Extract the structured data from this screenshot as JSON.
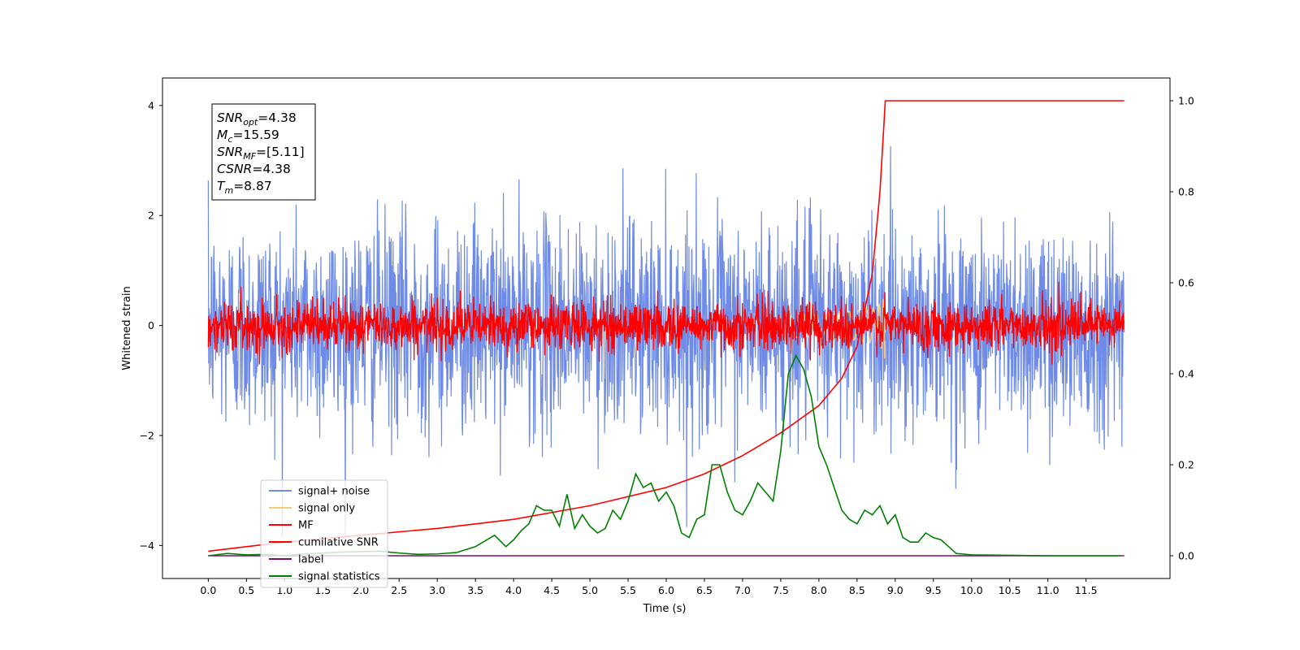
{
  "chart_data": {
    "type": "line",
    "xlabel": "Time (s)",
    "ylabel": "Whitened strain",
    "xlim": [
      -0.6,
      12.6
    ],
    "ylim": [
      -4.6,
      4.5
    ],
    "ylim_right": [
      -0.05,
      1.05
    ],
    "xticks": [
      "0.0",
      "0.5",
      "1.0",
      "1.5",
      "2.0",
      "2.5",
      "3.0",
      "3.5",
      "4.0",
      "4.5",
      "5.0",
      "5.5",
      "6.0",
      "6.5",
      "7.0",
      "7.5",
      "8.0",
      "8.5",
      "9.0",
      "9.5",
      "10.0",
      "10.5",
      "11.0",
      "11.5"
    ],
    "yticks_left": [
      "−4",
      "−2",
      "0",
      "2",
      "4"
    ],
    "yticks_right": [
      "0.0",
      "0.2",
      "0.4",
      "0.6",
      "0.8",
      "1.0"
    ],
    "duration": 12.0,
    "merger_time": 8.87,
    "info_lines": [
      {
        "base": "SNR",
        "sub": "opt",
        "value": "=4.38"
      },
      {
        "base": "M",
        "sub": "c",
        "value": "=15.59"
      },
      {
        "base": "SNR",
        "sub": "MF",
        "value": "=[5.11]"
      },
      {
        "base": "CSNR",
        "sub": "",
        "value": "=4.38"
      },
      {
        "base": "T",
        "sub": "m",
        "value": "=8.87"
      }
    ],
    "series": [
      {
        "name": "signal+ noise",
        "color": "#6f8be8",
        "axis": "left",
        "std": 0.95,
        "mean": 0.0
      },
      {
        "name": "signal only",
        "color": "#f5c97a",
        "axis": "left",
        "chirp_end": 8.87
      },
      {
        "name": "MF",
        "color": "#ff0000",
        "axis": "left",
        "std": 0.22,
        "mean": 0.0
      },
      {
        "name": "cumilative SNR",
        "color": "#ff0000",
        "axis": "right",
        "x": [
          0.0,
          1.0,
          2.0,
          3.0,
          4.0,
          5.0,
          6.0,
          6.5,
          7.0,
          7.5,
          8.0,
          8.3,
          8.5,
          8.7,
          8.8,
          8.87,
          12.0
        ],
        "y": [
          0.01,
          0.03,
          0.045,
          0.06,
          0.08,
          0.11,
          0.15,
          0.18,
          0.22,
          0.27,
          0.33,
          0.39,
          0.46,
          0.62,
          0.8,
          1.0,
          1.0
        ]
      },
      {
        "name": "label",
        "color": "#7b0f73",
        "axis": "right",
        "x": [
          0.0,
          12.0
        ],
        "y": [
          0.0,
          0.0
        ]
      },
      {
        "name": "signal statistics",
        "color": "#008000",
        "axis": "right",
        "x": [
          0.0,
          0.25,
          0.5,
          0.75,
          1.0,
          1.25,
          1.5,
          1.75,
          2.0,
          2.25,
          2.5,
          2.75,
          3.0,
          3.25,
          3.5,
          3.6,
          3.75,
          3.9,
          4.0,
          4.1,
          4.2,
          4.3,
          4.4,
          4.5,
          4.6,
          4.7,
          4.8,
          4.9,
          5.0,
          5.1,
          5.2,
          5.3,
          5.4,
          5.5,
          5.6,
          5.7,
          5.8,
          5.9,
          6.0,
          6.1,
          6.2,
          6.3,
          6.4,
          6.5,
          6.6,
          6.7,
          6.8,
          6.9,
          7.0,
          7.1,
          7.2,
          7.3,
          7.4,
          7.5,
          7.6,
          7.7,
          7.8,
          7.9,
          8.0,
          8.1,
          8.2,
          8.3,
          8.4,
          8.5,
          8.6,
          8.7,
          8.8,
          8.9,
          9.0,
          9.1,
          9.2,
          9.3,
          9.4,
          9.5,
          9.6,
          9.7,
          9.8,
          10.0,
          10.5,
          11.0,
          11.5,
          11.95
        ],
        "y": [
          0.0,
          0.005,
          0.002,
          0.003,
          0.0,
          0.004,
          0.006,
          0.008,
          0.009,
          0.01,
          0.006,
          0.003,
          0.004,
          0.007,
          0.02,
          0.03,
          0.045,
          0.02,
          0.035,
          0.055,
          0.07,
          0.11,
          0.1,
          0.1,
          0.065,
          0.135,
          0.06,
          0.09,
          0.065,
          0.05,
          0.06,
          0.1,
          0.08,
          0.12,
          0.18,
          0.15,
          0.16,
          0.12,
          0.14,
          0.11,
          0.05,
          0.04,
          0.08,
          0.09,
          0.2,
          0.2,
          0.14,
          0.1,
          0.09,
          0.12,
          0.16,
          0.14,
          0.12,
          0.23,
          0.4,
          0.44,
          0.41,
          0.35,
          0.24,
          0.2,
          0.15,
          0.1,
          0.08,
          0.07,
          0.1,
          0.09,
          0.11,
          0.07,
          0.09,
          0.04,
          0.03,
          0.03,
          0.05,
          0.04,
          0.035,
          0.02,
          0.005,
          0.002,
          0.001,
          0.0,
          0.0,
          0.0
        ]
      }
    ]
  }
}
